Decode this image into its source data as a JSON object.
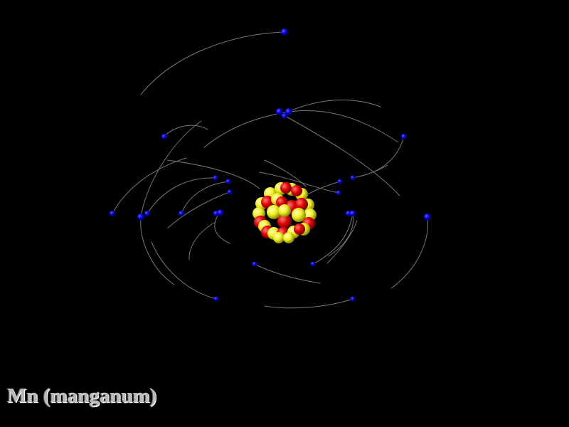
{
  "atom": {
    "label": "Mn (manganum)"
  },
  "colors": {
    "background": "#000000",
    "electron": "#0000dd",
    "orbit": "#8c8c8c",
    "proton": "#e00000",
    "neutron": "#eeee20",
    "label": "#b9b9b9"
  },
  "icons": {
    "nucleus": "nucleus-icon",
    "electron": "electron-icon"
  }
}
